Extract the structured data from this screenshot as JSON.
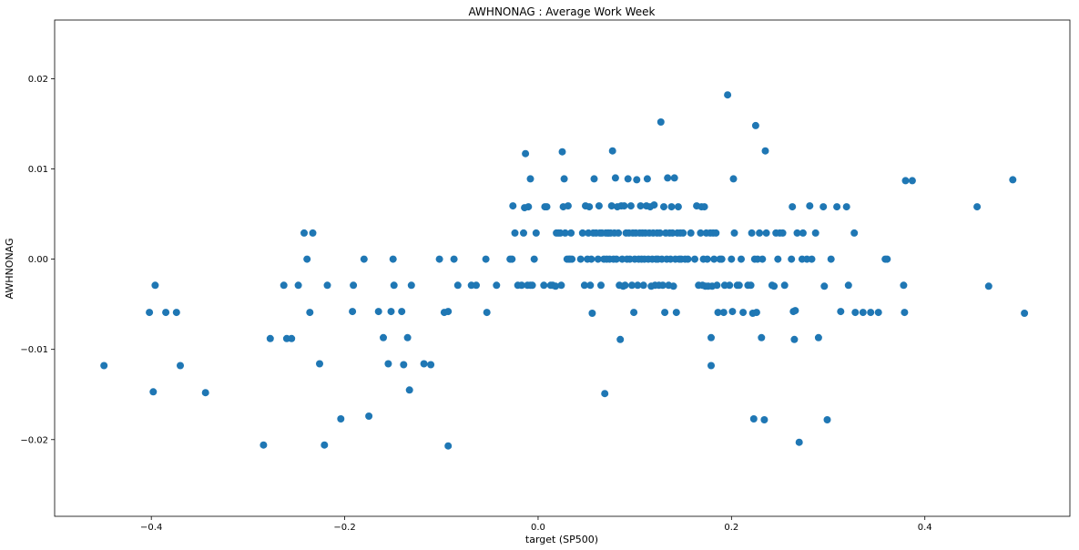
{
  "chart_data": {
    "type": "scatter",
    "title": "AWHNONAG :  Average Work Week",
    "xlabel": "target (SP500)",
    "ylabel": "AWHNONAG",
    "xlim": [
      -0.5,
      0.55
    ],
    "ylim": [
      -0.0285,
      0.0265
    ],
    "xticks": [
      -0.4,
      -0.2,
      0.0,
      0.2,
      0.4
    ],
    "xtick_labels": [
      "−0.4",
      "−0.2",
      "0.0",
      "0.2",
      "0.4"
    ],
    "yticks": [
      -0.02,
      -0.01,
      0.0,
      0.01,
      0.02
    ],
    "ytick_labels": [
      "−0.02",
      "−0.01",
      "0.00",
      "0.01",
      "0.02"
    ],
    "grid": false,
    "marker_color": "#1f77b4",
    "points": [
      [
        -0.449,
        -0.0118
      ],
      [
        -0.402,
        -0.0059
      ],
      [
        -0.398,
        -0.0147
      ],
      [
        -0.396,
        -0.0029
      ],
      [
        -0.385,
        -0.0059
      ],
      [
        -0.374,
        -0.0059
      ],
      [
        -0.37,
        -0.0118
      ],
      [
        -0.344,
        -0.0148
      ],
      [
        -0.284,
        -0.0206
      ],
      [
        -0.277,
        -0.0088
      ],
      [
        -0.263,
        -0.0029
      ],
      [
        -0.26,
        -0.0088
      ],
      [
        -0.255,
        -0.0088
      ],
      [
        -0.248,
        -0.0029
      ],
      [
        -0.242,
        0.0029
      ],
      [
        -0.239,
        0.0
      ],
      [
        -0.236,
        -0.0059
      ],
      [
        -0.233,
        0.0029
      ],
      [
        -0.226,
        -0.0116
      ],
      [
        -0.221,
        -0.0206
      ],
      [
        -0.218,
        -0.0029
      ],
      [
        -0.204,
        -0.0177
      ],
      [
        -0.192,
        -0.0058
      ],
      [
        -0.191,
        -0.0029
      ],
      [
        -0.18,
        0.0
      ],
      [
        -0.175,
        -0.0174
      ],
      [
        -0.165,
        -0.0058
      ],
      [
        -0.16,
        -0.0087
      ],
      [
        -0.155,
        -0.0116
      ],
      [
        -0.152,
        -0.0058
      ],
      [
        -0.15,
        0.0
      ],
      [
        -0.149,
        -0.0029
      ],
      [
        -0.141,
        -0.0058
      ],
      [
        -0.139,
        -0.0117
      ],
      [
        -0.135,
        -0.0087
      ],
      [
        -0.133,
        -0.0145
      ],
      [
        -0.131,
        -0.0029
      ],
      [
        -0.118,
        -0.0116
      ],
      [
        -0.111,
        -0.0117
      ],
      [
        -0.102,
        0.0
      ],
      [
        -0.097,
        -0.0059
      ],
      [
        -0.093,
        -0.0207
      ],
      [
        -0.093,
        -0.0058
      ],
      [
        -0.087,
        0.0
      ],
      [
        -0.083,
        -0.0029
      ],
      [
        -0.069,
        -0.0029
      ],
      [
        -0.064,
        -0.0029
      ],
      [
        -0.054,
        0.0
      ],
      [
        -0.053,
        -0.0059
      ],
      [
        -0.043,
        -0.0029
      ],
      [
        -0.029,
        0.0
      ],
      [
        -0.027,
        0.0
      ],
      [
        -0.026,
        0.0059
      ],
      [
        -0.024,
        0.0029
      ],
      [
        -0.021,
        -0.0029
      ],
      [
        -0.017,
        -0.0029
      ],
      [
        -0.015,
        0.0029
      ],
      [
        -0.014,
        0.0057
      ],
      [
        -0.013,
        0.0117
      ],
      [
        -0.011,
        -0.0029
      ],
      [
        -0.01,
        0.0058
      ],
      [
        -0.008,
        -0.0029
      ],
      [
        -0.008,
        0.0089
      ],
      [
        -0.006,
        -0.0029
      ],
      [
        -0.004,
        0.0
      ],
      [
        -0.002,
        0.0029
      ],
      [
        0.006,
        -0.0029
      ],
      [
        0.007,
        0.0058
      ],
      [
        0.009,
        0.0058
      ],
      [
        0.013,
        -0.0029
      ],
      [
        0.015,
        -0.0029
      ],
      [
        0.018,
        -0.003
      ],
      [
        0.019,
        0.0029
      ],
      [
        0.021,
        0.0029
      ],
      [
        0.023,
        0.0029
      ],
      [
        0.024,
        -0.0029
      ],
      [
        0.025,
        0.0119
      ],
      [
        0.026,
        0.0058
      ],
      [
        0.027,
        0.0089
      ],
      [
        0.028,
        0.0029
      ],
      [
        0.03,
        0.0
      ],
      [
        0.031,
        0.0059
      ],
      [
        0.032,
        0.0
      ],
      [
        0.033,
        0.0
      ],
      [
        0.034,
        0.0029
      ],
      [
        0.035,
        0.0
      ],
      [
        0.044,
        0.0
      ],
      [
        0.046,
        0.0029
      ],
      [
        0.048,
        -0.0029
      ],
      [
        0.049,
        0.0059
      ],
      [
        0.051,
        0.0
      ],
      [
        0.052,
        0.0029
      ],
      [
        0.053,
        0.0058
      ],
      [
        0.054,
        -0.0029
      ],
      [
        0.055,
        0.0
      ],
      [
        0.056,
        -0.006
      ],
      [
        0.057,
        0.0029
      ],
      [
        0.058,
        0.0089
      ],
      [
        0.06,
        0.0029
      ],
      [
        0.062,
        0.0
      ],
      [
        0.063,
        0.0059
      ],
      [
        0.064,
        0.0029
      ],
      [
        0.065,
        -0.0029
      ],
      [
        0.066,
        0.0029
      ],
      [
        0.068,
        0.0
      ],
      [
        0.069,
        -0.0149
      ],
      [
        0.07,
        0.0029
      ],
      [
        0.071,
        0.0
      ],
      [
        0.072,
        0.0029
      ],
      [
        0.073,
        0.0029
      ],
      [
        0.074,
        0.0
      ],
      [
        0.075,
        0.0029
      ],
      [
        0.076,
        0.0059
      ],
      [
        0.077,
        0.012
      ],
      [
        0.078,
        0.0
      ],
      [
        0.079,
        0.0029
      ],
      [
        0.08,
        0.009
      ],
      [
        0.081,
        0.0
      ],
      [
        0.082,
        0.0058
      ],
      [
        0.083,
        0.0029
      ],
      [
        0.084,
        -0.0029
      ],
      [
        0.085,
        -0.0089
      ],
      [
        0.086,
        0.0059
      ],
      [
        0.087,
        0.0
      ],
      [
        0.088,
        -0.003
      ],
      [
        0.089,
        0.0059
      ],
      [
        0.09,
        -0.0029
      ],
      [
        0.091,
        0.0029
      ],
      [
        0.092,
        0.0
      ],
      [
        0.093,
        0.0089
      ],
      [
        0.094,
        0.0029
      ],
      [
        0.095,
        0.0
      ],
      [
        0.096,
        0.0059
      ],
      [
        0.097,
        -0.0029
      ],
      [
        0.098,
        0.0029
      ],
      [
        0.099,
        -0.0059
      ],
      [
        0.1,
        0.0
      ],
      [
        0.101,
        0.0029
      ],
      [
        0.102,
        0.0088
      ],
      [
        0.103,
        -0.0029
      ],
      [
        0.104,
        0.0
      ],
      [
        0.105,
        0.0029
      ],
      [
        0.106,
        0.0059
      ],
      [
        0.107,
        0.0
      ],
      [
        0.108,
        0.0029
      ],
      [
        0.109,
        -0.0029
      ],
      [
        0.11,
        0.0
      ],
      [
        0.111,
        0.0029
      ],
      [
        0.112,
        0.0059
      ],
      [
        0.113,
        0.0089
      ],
      [
        0.114,
        0.0
      ],
      [
        0.115,
        0.0029
      ],
      [
        0.116,
        0.0058
      ],
      [
        0.117,
        -0.003
      ],
      [
        0.118,
        0.0
      ],
      [
        0.119,
        0.0029
      ],
      [
        0.12,
        0.006
      ],
      [
        0.121,
        -0.0029
      ],
      [
        0.122,
        0.0
      ],
      [
        0.123,
        0.0029
      ],
      [
        0.124,
        0.0
      ],
      [
        0.125,
        -0.0029
      ],
      [
        0.126,
        0.0029
      ],
      [
        0.127,
        0.0152
      ],
      [
        0.128,
        0.0
      ],
      [
        0.129,
        -0.0029
      ],
      [
        0.13,
        0.0058
      ],
      [
        0.131,
        -0.0059
      ],
      [
        0.132,
        0.0029
      ],
      [
        0.133,
        0.0
      ],
      [
        0.134,
        0.009
      ],
      [
        0.135,
        -0.0029
      ],
      [
        0.136,
        0.0029
      ],
      [
        0.137,
        0.0
      ],
      [
        0.138,
        0.0058
      ],
      [
        0.139,
        0.0029
      ],
      [
        0.14,
        -0.003
      ],
      [
        0.141,
        0.009
      ],
      [
        0.142,
        0.0
      ],
      [
        0.143,
        -0.0059
      ],
      [
        0.144,
        0.0029
      ],
      [
        0.145,
        0.0058
      ],
      [
        0.146,
        0.0
      ],
      [
        0.147,
        0.0029
      ],
      [
        0.148,
        0.0
      ],
      [
        0.15,
        0.0029
      ],
      [
        0.152,
        0.0
      ],
      [
        0.155,
        0.0
      ],
      [
        0.158,
        0.0029
      ],
      [
        0.162,
        0.0
      ],
      [
        0.164,
        0.0059
      ],
      [
        0.166,
        -0.0029
      ],
      [
        0.168,
        0.0029
      ],
      [
        0.169,
        0.0058
      ],
      [
        0.17,
        -0.0029
      ],
      [
        0.171,
        0.0
      ],
      [
        0.172,
        0.0058
      ],
      [
        0.173,
        -0.003
      ],
      [
        0.174,
        0.0029
      ],
      [
        0.175,
        0.0
      ],
      [
        0.176,
        -0.003
      ],
      [
        0.178,
        0.0029
      ],
      [
        0.179,
        -0.0087
      ],
      [
        0.179,
        -0.0118
      ],
      [
        0.18,
        -0.003
      ],
      [
        0.181,
        0.0029
      ],
      [
        0.182,
        0.0
      ],
      [
        0.184,
        0.0029
      ],
      [
        0.185,
        -0.0029
      ],
      [
        0.186,
        -0.0059
      ],
      [
        0.188,
        0.0
      ],
      [
        0.19,
        0.0
      ],
      [
        0.192,
        -0.0059
      ],
      [
        0.193,
        -0.0029
      ],
      [
        0.196,
        0.0182
      ],
      [
        0.198,
        -0.0029
      ],
      [
        0.2,
        0.0
      ],
      [
        0.201,
        -0.0058
      ],
      [
        0.202,
        0.0089
      ],
      [
        0.203,
        0.0029
      ],
      [
        0.206,
        -0.0029
      ],
      [
        0.208,
        -0.0029
      ],
      [
        0.21,
        0.0
      ],
      [
        0.212,
        -0.0059
      ],
      [
        0.217,
        -0.0029
      ],
      [
        0.22,
        -0.0029
      ],
      [
        0.221,
        0.0029
      ],
      [
        0.222,
        -0.006
      ],
      [
        0.223,
        -0.0177
      ],
      [
        0.224,
        0.0
      ],
      [
        0.225,
        0.0148
      ],
      [
        0.226,
        -0.0059
      ],
      [
        0.227,
        0.0
      ],
      [
        0.229,
        0.0029
      ],
      [
        0.231,
        -0.0087
      ],
      [
        0.232,
        0.0
      ],
      [
        0.234,
        -0.0178
      ],
      [
        0.235,
        0.012
      ],
      [
        0.236,
        0.0029
      ],
      [
        0.242,
        -0.0029
      ],
      [
        0.244,
        -0.003
      ],
      [
        0.246,
        0.0029
      ],
      [
        0.248,
        0.0
      ],
      [
        0.25,
        0.0029
      ],
      [
        0.253,
        0.0029
      ],
      [
        0.255,
        -0.0029
      ],
      [
        0.262,
        0.0
      ],
      [
        0.263,
        0.0058
      ],
      [
        0.264,
        -0.0058
      ],
      [
        0.265,
        -0.0089
      ],
      [
        0.266,
        -0.0057
      ],
      [
        0.268,
        0.0029
      ],
      [
        0.27,
        -0.0203
      ],
      [
        0.273,
        0.0
      ],
      [
        0.274,
        0.0029
      ],
      [
        0.278,
        0.0
      ],
      [
        0.281,
        0.0059
      ],
      [
        0.283,
        0.0
      ],
      [
        0.287,
        0.0029
      ],
      [
        0.29,
        -0.0087
      ],
      [
        0.295,
        0.0058
      ],
      [
        0.296,
        -0.003
      ],
      [
        0.299,
        -0.0178
      ],
      [
        0.303,
        0.0
      ],
      [
        0.309,
        0.0058
      ],
      [
        0.313,
        -0.0058
      ],
      [
        0.319,
        0.0058
      ],
      [
        0.321,
        -0.0029
      ],
      [
        0.327,
        0.0029
      ],
      [
        0.328,
        -0.0059
      ],
      [
        0.336,
        -0.0059
      ],
      [
        0.344,
        -0.0059
      ],
      [
        0.352,
        -0.0059
      ],
      [
        0.359,
        0.0
      ],
      [
        0.361,
        0.0
      ],
      [
        0.378,
        -0.0029
      ],
      [
        0.379,
        -0.0059
      ],
      [
        0.38,
        0.0087
      ],
      [
        0.387,
        0.0087
      ],
      [
        0.454,
        0.0058
      ],
      [
        0.466,
        -0.003
      ],
      [
        0.491,
        0.0088
      ],
      [
        0.503,
        -0.006
      ]
    ]
  }
}
